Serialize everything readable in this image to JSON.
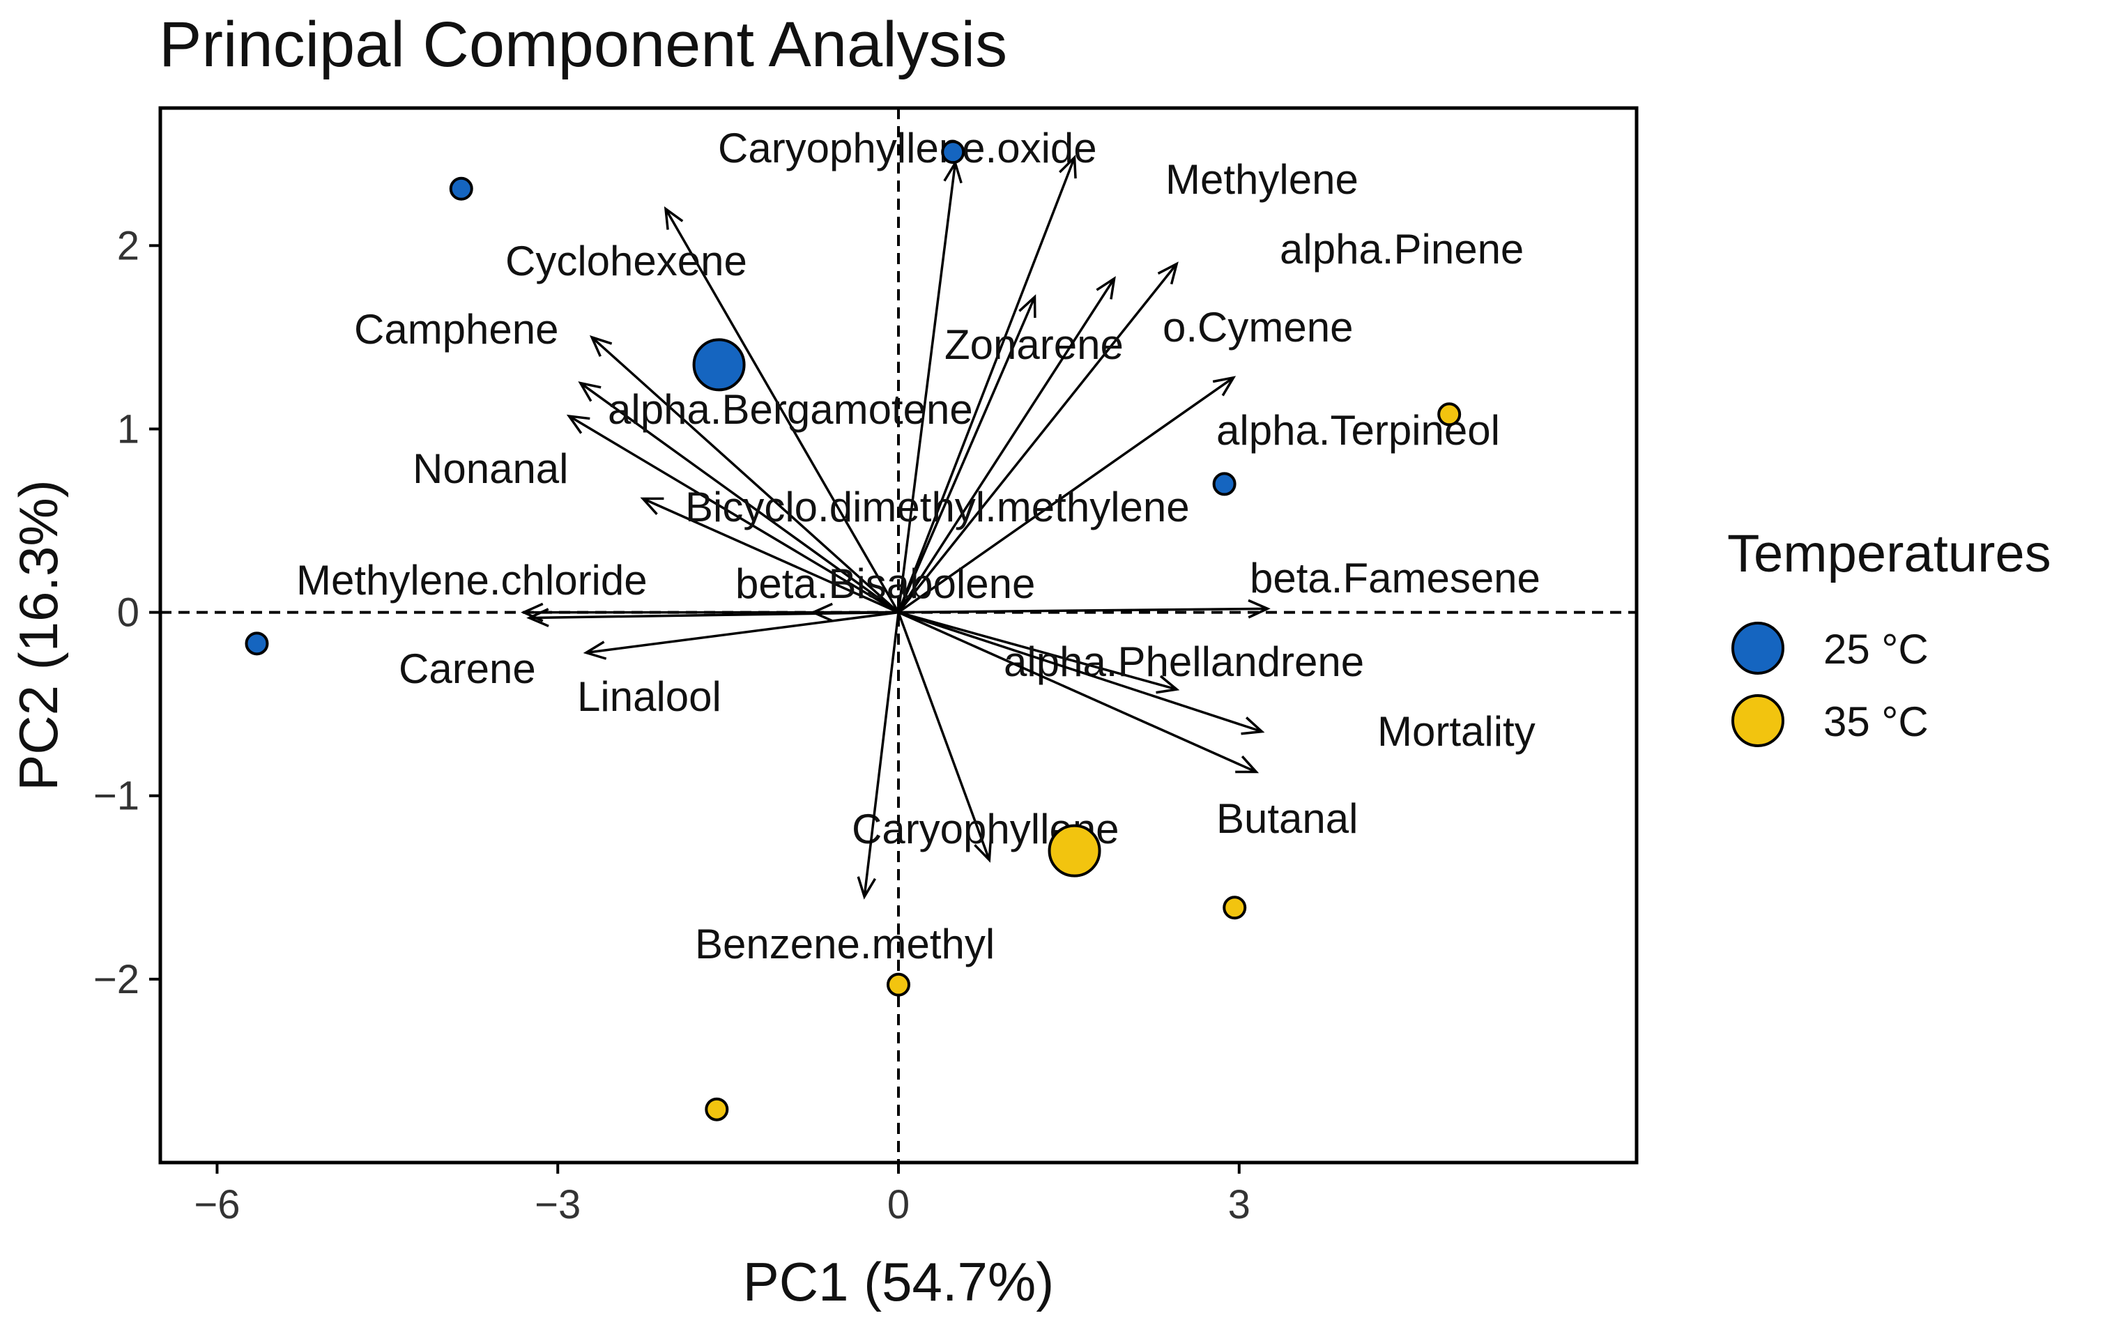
{
  "chart_data": {
    "type": "scatter",
    "subtype": "biplot",
    "title": "Principal Component Analysis",
    "xlabel": "PC1 (54.7%)",
    "ylabel": "PC2 (16.3%)",
    "xlim": [
      -6.5,
      6.5
    ],
    "ylim": [
      -3.0,
      2.75
    ],
    "xticks": [
      -6,
      -3,
      0,
      3
    ],
    "yticks": [
      -2,
      -1,
      0,
      1,
      2
    ],
    "xtick_labels": [
      "−6",
      "−3",
      "0",
      "3"
    ],
    "ytick_labels": [
      "−2",
      "−1",
      "0",
      "1",
      "2"
    ],
    "grid": false,
    "reference_lines": "dashed lines at x=0 and y=0",
    "legend": {
      "title": "Temperatures",
      "placement": "right",
      "entries": [
        {
          "label": "25 °C",
          "color": "#1565c0"
        },
        {
          "label": "35 °C",
          "color": "#f2c40f"
        }
      ]
    },
    "series": [
      {
        "name": "25 °C",
        "color": "#1565c0",
        "points": [
          {
            "x": -3.85,
            "y": 2.31,
            "size": "small"
          },
          {
            "x": 0.48,
            "y": 2.51,
            "size": "small"
          },
          {
            "x": -1.58,
            "y": 1.35,
            "size": "large"
          },
          {
            "x": 2.87,
            "y": 0.7,
            "size": "small"
          },
          {
            "x": -5.65,
            "y": -0.17,
            "size": "small"
          }
        ]
      },
      {
        "name": "35 °C",
        "color": "#f2c40f",
        "points": [
          {
            "x": 4.85,
            "y": 1.08,
            "size": "small"
          },
          {
            "x": 1.55,
            "y": -1.3,
            "size": "large"
          },
          {
            "x": 2.96,
            "y": -1.61,
            "size": "small"
          },
          {
            "x": 0.0,
            "y": -2.03,
            "size": "small"
          },
          {
            "x": -1.6,
            "y": -2.71,
            "size": "small"
          }
        ]
      }
    ],
    "loadings": [
      {
        "name": "Caryophyllene.oxide",
        "x": 0.5,
        "y": 2.45
      },
      {
        "name": "Methylene",
        "x": 1.55,
        "y": 2.48
      },
      {
        "name": "Cyclohexene",
        "x": -2.05,
        "y": 2.2
      },
      {
        "name": "alpha.Pinene",
        "x": 2.45,
        "y": 1.9
      },
      {
        "name": "Zonarene",
        "x": 1.2,
        "y": 1.72
      },
      {
        "name": "o.Cymene",
        "x": 1.9,
        "y": 1.82
      },
      {
        "name": "Camphene",
        "x": -2.7,
        "y": 1.5
      },
      {
        "name": "alpha.Bergamotene",
        "x": -2.8,
        "y": 1.25
      },
      {
        "name": "Nonanal",
        "x": -2.9,
        "y": 1.07
      },
      {
        "name": "alpha.Terpineol",
        "x": 2.95,
        "y": 1.28
      },
      {
        "name": "Bicyclo.dimethyl.methylene",
        "x": -2.25,
        "y": 0.62
      },
      {
        "name": "beta.Bisabolene",
        "x": -0.75,
        "y": 0.0
      },
      {
        "name": "Methylene.chloride",
        "x": -3.3,
        "y": 0.0
      },
      {
        "name": "Carene",
        "x": -3.25,
        "y": -0.03
      },
      {
        "name": "Linalool",
        "x": -2.75,
        "y": -0.22
      },
      {
        "name": "beta.Famesene",
        "x": 3.25,
        "y": 0.02
      },
      {
        "name": "alpha.Phellandrene",
        "x": 2.45,
        "y": -0.42
      },
      {
        "name": "Mortality",
        "x": 3.2,
        "y": -0.65
      },
      {
        "name": "Butanal",
        "x": 3.15,
        "y": -0.87
      },
      {
        "name": "Caryophyllene",
        "x": 0.8,
        "y": -1.35
      },
      {
        "name": "Benzene.methyl",
        "x": -0.3,
        "y": -1.55
      }
    ]
  }
}
